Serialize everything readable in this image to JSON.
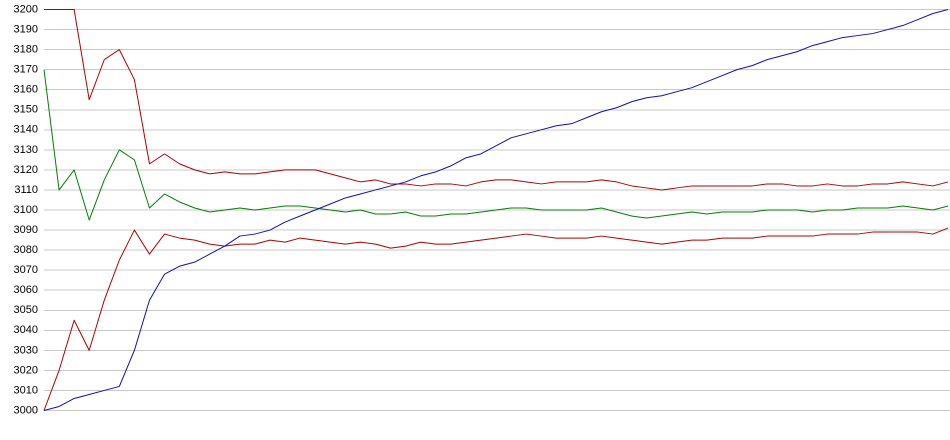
{
  "chart_data": {
    "type": "line",
    "ylim": [
      3000,
      3200
    ],
    "yticks": [
      3000,
      3010,
      3020,
      3030,
      3040,
      3050,
      3060,
      3070,
      3080,
      3090,
      3100,
      3110,
      3120,
      3130,
      3140,
      3150,
      3160,
      3170,
      3180,
      3190,
      3200
    ],
    "grid": true,
    "series": [
      {
        "color": "#b00000",
        "values": [
          3200,
          3200,
          3200,
          3155,
          3175,
          3180,
          3165,
          3123,
          3128,
          3123,
          3120,
          3118,
          3119,
          3118,
          3118,
          3119,
          3120,
          3120,
          3120,
          3118,
          3116,
          3114,
          3115,
          3113,
          3113,
          3112,
          3113,
          3113,
          3112,
          3114,
          3115,
          3115,
          3114,
          3113,
          3114,
          3114,
          3114,
          3115,
          3114,
          3112,
          3111,
          3110,
          3111,
          3112,
          3112,
          3112,
          3112,
          3112,
          3113,
          3113,
          3112,
          3112,
          3113,
          3112,
          3112,
          3113,
          3113,
          3114,
          3113,
          3112,
          3114
        ]
      },
      {
        "color": "#008000",
        "values": [
          3170,
          3110,
          3120,
          3095,
          3115,
          3130,
          3125,
          3101,
          3108,
          3104,
          3101,
          3099,
          3100,
          3101,
          3100,
          3101,
          3102,
          3102,
          3101,
          3100,
          3099,
          3100,
          3098,
          3098,
          3099,
          3097,
          3097,
          3098,
          3098,
          3099,
          3100,
          3101,
          3101,
          3100,
          3100,
          3100,
          3100,
          3101,
          3099,
          3097,
          3096,
          3097,
          3098,
          3099,
          3098,
          3099,
          3099,
          3099,
          3100,
          3100,
          3100,
          3099,
          3100,
          3100,
          3101,
          3101,
          3101,
          3102,
          3101,
          3100,
          3102
        ]
      },
      {
        "color": "#b00000",
        "values": [
          3000,
          3020,
          3045,
          3030,
          3055,
          3075,
          3090,
          3078,
          3088,
          3086,
          3085,
          3083,
          3082,
          3083,
          3083,
          3085,
          3084,
          3086,
          3085,
          3084,
          3083,
          3084,
          3083,
          3081,
          3082,
          3084,
          3083,
          3083,
          3084,
          3085,
          3086,
          3087,
          3088,
          3087,
          3086,
          3086,
          3086,
          3087,
          3086,
          3085,
          3084,
          3083,
          3084,
          3085,
          3085,
          3086,
          3086,
          3086,
          3087,
          3087,
          3087,
          3087,
          3088,
          3088,
          3088,
          3089,
          3089,
          3089,
          3089,
          3088,
          3091
        ]
      },
      {
        "color": "#1010b0",
        "values": [
          3000,
          3002,
          3006,
          3008,
          3010,
          3012,
          3030,
          3055,
          3068,
          3072,
          3074,
          3078,
          3082,
          3087,
          3088,
          3090,
          3094,
          3097,
          3100,
          3103,
          3106,
          3108,
          3110,
          3112,
          3114,
          3117,
          3119,
          3122,
          3126,
          3128,
          3132,
          3136,
          3138,
          3140,
          3142,
          3143,
          3146,
          3149,
          3151,
          3154,
          3156,
          3157,
          3159,
          3161,
          3164,
          3167,
          3170,
          3172,
          3175,
          3177,
          3179,
          3182,
          3184,
          3186,
          3187,
          3188,
          3190,
          3192,
          3195,
          3198,
          3200
        ]
      }
    ]
  }
}
